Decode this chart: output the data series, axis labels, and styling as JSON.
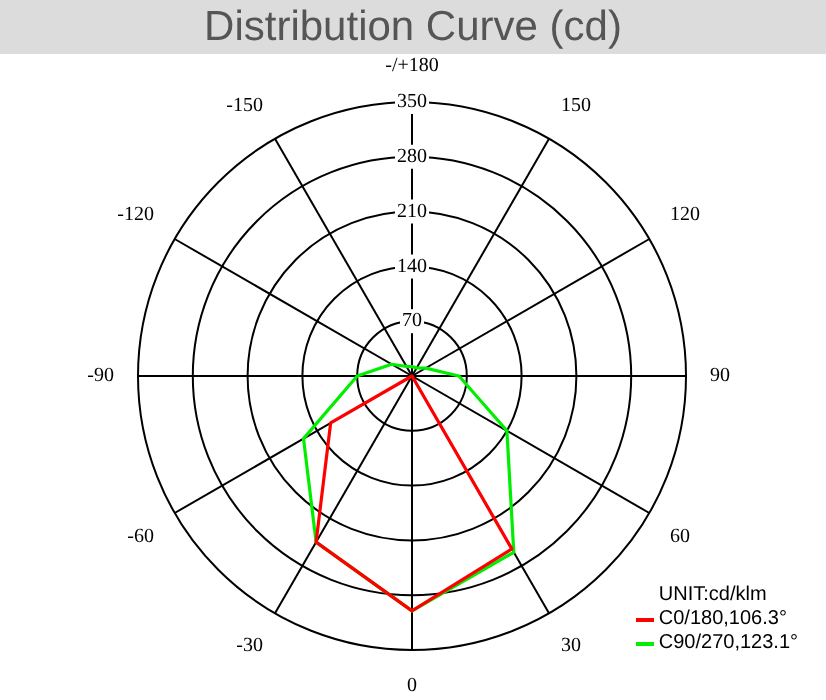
{
  "chart_data": {
    "type": "radar",
    "title": "Distribution Curve (cd)",
    "legend_title": "UNIT:cd/klm",
    "categories": [
      "-/+180",
      "150",
      "120",
      "90",
      "60",
      "30",
      "0",
      "-30",
      "-60",
      "-90",
      "-120",
      "-150"
    ],
    "series": [
      {
        "name": "C0/180,106.3°",
        "color": "#ff0000",
        "values": [
          0,
          0,
          0,
          0,
          0,
          255,
          300,
          245,
          120,
          0,
          0,
          0
        ]
      },
      {
        "name": "C90/270,123.1°",
        "color": "#00ee00",
        "values": [
          12,
          12,
          20,
          60,
          140,
          260,
          300,
          245,
          160,
          70,
          30,
          14
        ]
      }
    ],
    "ylim": [
      0,
      350
    ],
    "yticks": [
      70,
      140,
      210,
      280,
      350
    ],
    "grid": true,
    "legend": "bottom right",
    "marker": "none",
    "line_style": "solid"
  }
}
